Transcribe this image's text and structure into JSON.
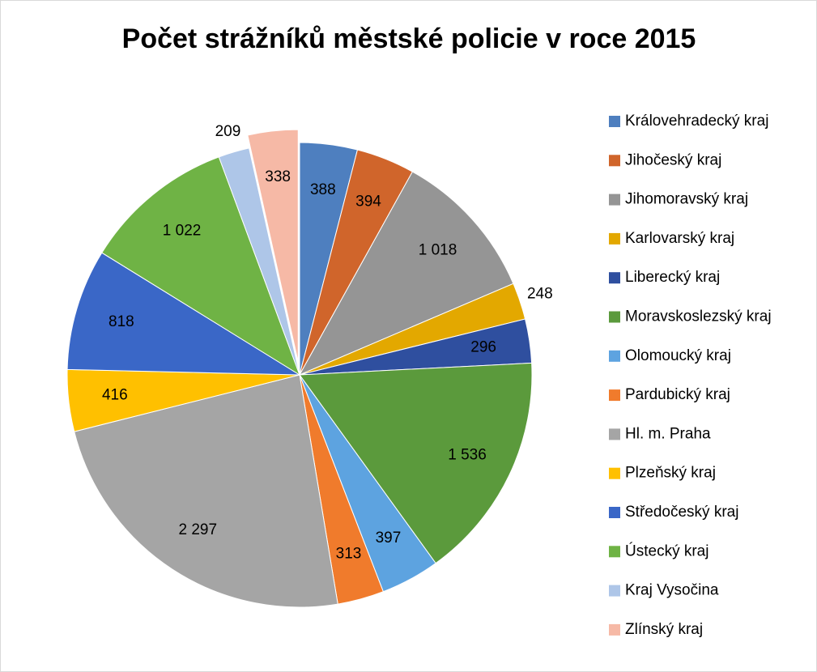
{
  "chart_data": {
    "type": "pie",
    "title": "Počet strážníků městské policie v roce 2015",
    "categories": [
      "Královehradecký kraj",
      "Jihočeský kraj",
      "Jihomoravský kraj",
      "Karlovarský kraj",
      "Liberecký kraj",
      "Moravskoslezský kraj",
      "Olomoucký kraj",
      "Pardubický kraj",
      "Hl. m. Praha",
      "Plzeňský kraj",
      "Středočeský kraj",
      "Ústecký kraj",
      "Kraj Vysočina",
      "Zlínský kraj"
    ],
    "values": [
      388,
      394,
      1018,
      248,
      296,
      1536,
      397,
      313,
      2297,
      416,
      818,
      1022,
      209,
      338
    ],
    "value_labels": [
      "388",
      "394",
      "1 018",
      "248",
      "296",
      "1 536",
      "397",
      "313",
      "2 297",
      "416",
      "818",
      "1 022",
      "209",
      "338"
    ],
    "colors": [
      "#4e7fbf",
      "#d0652b",
      "#959595",
      "#e3a800",
      "#2f4f9f",
      "#5b9a3c",
      "#5da3e0",
      "#f07b2c",
      "#a5a5a5",
      "#ffc000",
      "#3a67c7",
      "#6fb345",
      "#aec6e8",
      "#f6b9a6"
    ],
    "legend": "right"
  }
}
